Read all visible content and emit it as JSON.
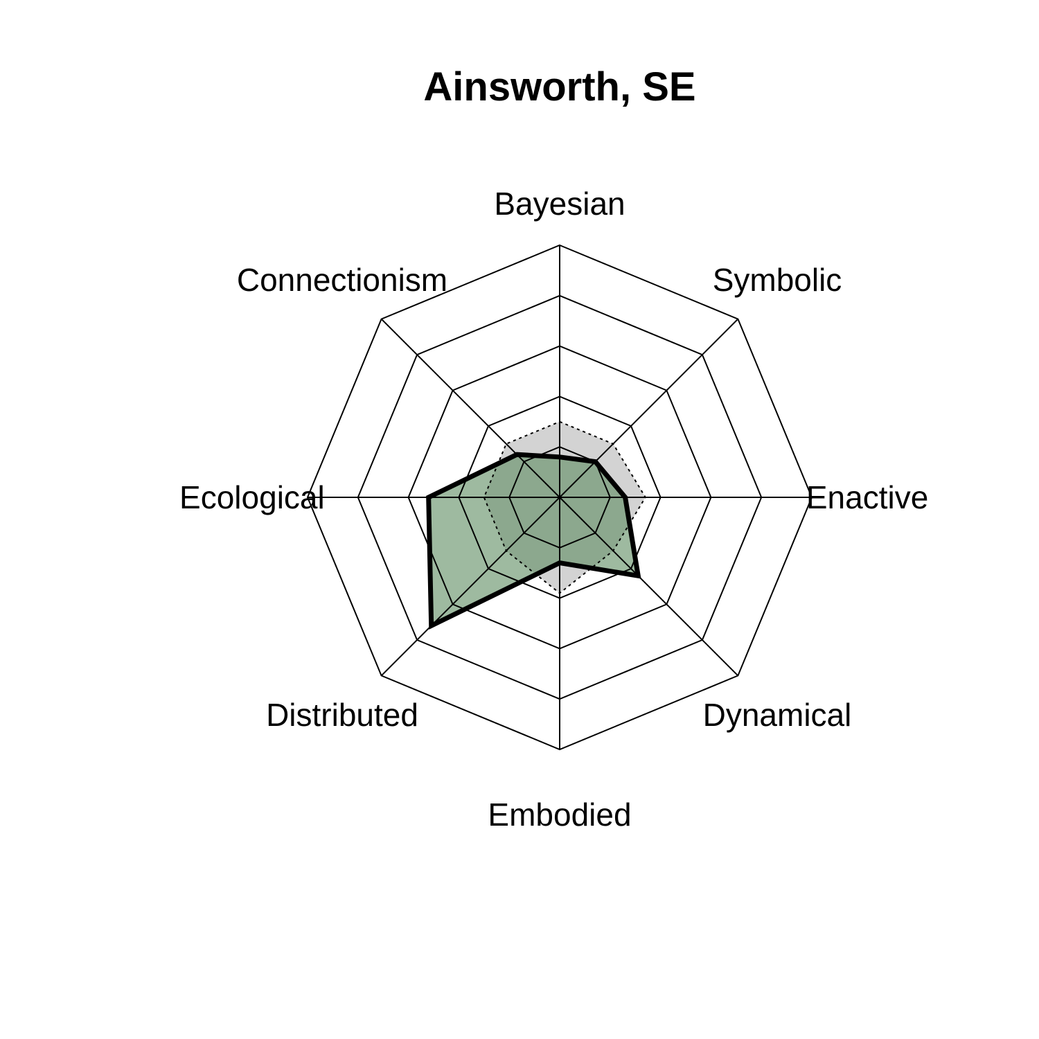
{
  "chart_data": {
    "type": "radar",
    "title": "Ainsworth, SE",
    "axes": [
      "Bayesian",
      "Symbolic",
      "Enactive",
      "Dynamical",
      "Embodied",
      "Distributed",
      "Ecological",
      "Connectionism"
    ],
    "rmax": 5,
    "rings": 5,
    "grid": true,
    "series": [
      {
        "values": [
          0.8,
          1.0,
          1.3,
          2.2,
          1.3,
          3.6,
          2.6,
          1.2
        ],
        "fill": "#5e8c61",
        "fill_opacity": 0.6,
        "stroke": "#000000",
        "line_style": "solid"
      },
      {
        "values": [
          1.5,
          1.5,
          1.7,
          1.5,
          1.9,
          1.5,
          1.5,
          1.5
        ],
        "fill": "#a8a8a8",
        "fill_opacity": 0.5,
        "stroke": "#000000",
        "line_style": "dotted"
      }
    ]
  }
}
